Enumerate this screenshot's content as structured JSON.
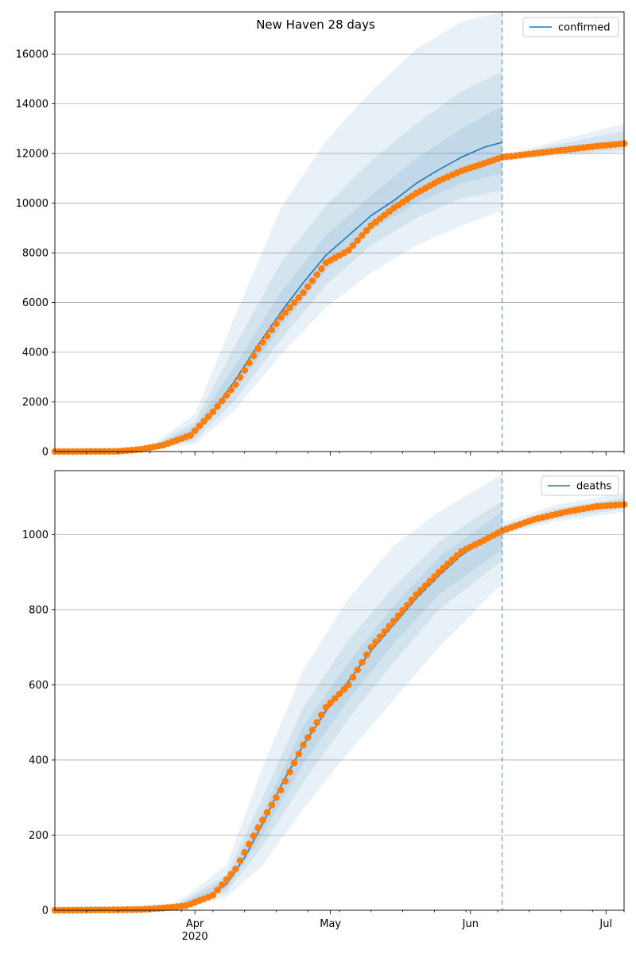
{
  "figure": {
    "title": "New Haven 28 days",
    "colors": {
      "line": "#1f77b4",
      "points": "#ff7f0e",
      "band": "#1f77b4",
      "grid": "#b0b0b0",
      "forecast_line": "#1f77b4"
    }
  },
  "chart_data": [
    {
      "type": "line",
      "name": "confirmed-panel",
      "legend": "confirmed",
      "legend_placement": "top-right",
      "grid_y": true,
      "x_range": [
        "2020-03-01",
        "2020-07-05"
      ],
      "ylim": [
        0,
        17700
      ],
      "yticks": [
        0,
        2000,
        4000,
        6000,
        8000,
        10000,
        12000,
        14000,
        16000
      ],
      "forecast_start": "2020-06-08",
      "model": [
        [
          "2020-03-01",
          0
        ],
        [
          "2020-03-15",
          20
        ],
        [
          "2020-03-22",
          120
        ],
        [
          "2020-03-27",
          420
        ],
        [
          "2020-04-01",
          800
        ],
        [
          "2020-04-05",
          1600
        ],
        [
          "2020-04-10",
          2900
        ],
        [
          "2020-04-15",
          4300
        ],
        [
          "2020-04-20",
          5600
        ],
        [
          "2020-04-25",
          6800
        ],
        [
          "2020-04-30",
          7900
        ],
        [
          "2020-05-05",
          8700
        ],
        [
          "2020-05-10",
          9500
        ],
        [
          "2020-05-15",
          10100
        ],
        [
          "2020-05-20",
          10800
        ],
        [
          "2020-05-25",
          11350
        ],
        [
          "2020-05-30",
          11850
        ],
        [
          "2020-06-04",
          12250
        ],
        [
          "2020-06-08",
          12450
        ]
      ],
      "bands": [
        [
          [
            "2020-03-01",
            0,
            0
          ],
          [
            "2020-03-22",
            60,
            200
          ],
          [
            "2020-04-01",
            300,
            1500
          ],
          [
            "2020-04-10",
            1700,
            5500
          ],
          [
            "2020-04-20",
            3900,
            9800
          ],
          [
            "2020-04-30",
            5800,
            12500
          ],
          [
            "2020-05-10",
            7200,
            14500
          ],
          [
            "2020-05-20",
            8300,
            16200
          ],
          [
            "2020-05-30",
            9100,
            17300
          ],
          [
            "2020-06-08",
            9700,
            17700
          ]
        ],
        [
          [
            "2020-03-01",
            0,
            0
          ],
          [
            "2020-03-22",
            80,
            170
          ],
          [
            "2020-04-01",
            450,
            1200
          ],
          [
            "2020-04-10",
            2100,
            4300
          ],
          [
            "2020-04-20",
            4500,
            7600
          ],
          [
            "2020-04-30",
            6700,
            9900
          ],
          [
            "2020-05-10",
            8300,
            11700
          ],
          [
            "2020-05-20",
            9400,
            13200
          ],
          [
            "2020-05-30",
            10200,
            14500
          ],
          [
            "2020-06-08",
            10500,
            15300
          ]
        ],
        [
          [
            "2020-03-01",
            0,
            0
          ],
          [
            "2020-03-22",
            95,
            150
          ],
          [
            "2020-04-01",
            600,
            1000
          ],
          [
            "2020-04-10",
            2500,
            3500
          ],
          [
            "2020-04-20",
            5000,
            6400
          ],
          [
            "2020-04-30",
            7300,
            8700
          ],
          [
            "2020-05-10",
            8900,
            10300
          ],
          [
            "2020-05-20",
            10000,
            11800
          ],
          [
            "2020-05-30",
            10800,
            13000
          ],
          [
            "2020-06-08",
            11200,
            13900
          ]
        ]
      ],
      "forecast_bands": [
        [
          [
            "2020-06-08",
            11700,
            11900
          ],
          [
            "2020-06-20",
            11900,
            12500
          ],
          [
            "2020-07-05",
            12050,
            13200
          ]
        ],
        [
          [
            "2020-06-08",
            11750,
            11880
          ],
          [
            "2020-06-20",
            11950,
            12350
          ],
          [
            "2020-07-05",
            12150,
            12900
          ]
        ]
      ],
      "forecast_model": [
        [
          "2020-06-08",
          11820
        ],
        [
          "2020-06-20",
          12100
        ],
        [
          "2020-07-05",
          12400
        ]
      ],
      "observed_anchors": [
        [
          "2020-03-01",
          0
        ],
        [
          "2020-03-15",
          10
        ],
        [
          "2020-03-20",
          90
        ],
        [
          "2020-03-25",
          260
        ],
        [
          "2020-03-31",
          650
        ],
        [
          "2020-04-05",
          1600
        ],
        [
          "2020-04-10",
          2700
        ],
        [
          "2020-04-15",
          4150
        ],
        [
          "2020-04-20",
          5400
        ],
        [
          "2020-04-25",
          6400
        ],
        [
          "2020-04-30",
          7600
        ],
        [
          "2020-05-05",
          8100
        ],
        [
          "2020-05-10",
          9100
        ],
        [
          "2020-05-15",
          9800
        ],
        [
          "2020-05-20",
          10400
        ],
        [
          "2020-05-25",
          10900
        ],
        [
          "2020-05-30",
          11300
        ],
        [
          "2020-06-04",
          11600
        ],
        [
          "2020-06-08",
          11850
        ],
        [
          "2020-06-15",
          12000
        ],
        [
          "2020-06-22",
          12150
        ],
        [
          "2020-06-29",
          12300
        ],
        [
          "2020-07-05",
          12400
        ]
      ]
    },
    {
      "type": "line",
      "name": "deaths-panel",
      "legend": "deaths",
      "legend_placement": "top-right",
      "grid_y": true,
      "x_range": [
        "2020-03-01",
        "2020-07-05"
      ],
      "ylim": [
        0,
        1170
      ],
      "yticks": [
        0,
        200,
        400,
        600,
        800,
        1000
      ],
      "forecast_start": "2020-06-08",
      "model": [
        [
          "2020-03-01",
          0
        ],
        [
          "2020-03-20",
          2
        ],
        [
          "2020-03-28",
          10
        ],
        [
          "2020-04-03",
          30
        ],
        [
          "2020-04-08",
          70
        ],
        [
          "2020-04-12",
          140
        ],
        [
          "2020-04-16",
          230
        ],
        [
          "2020-04-20",
          330
        ],
        [
          "2020-04-25",
          440
        ],
        [
          "2020-04-30",
          530
        ],
        [
          "2020-05-05",
          610
        ],
        [
          "2020-05-10",
          690
        ],
        [
          "2020-05-15",
          760
        ],
        [
          "2020-05-20",
          830
        ],
        [
          "2020-05-25",
          890
        ],
        [
          "2020-05-30",
          945
        ],
        [
          "2020-06-04",
          985
        ],
        [
          "2020-06-08",
          1010
        ]
      ],
      "bands": [
        [
          [
            "2020-03-01",
            0,
            0
          ],
          [
            "2020-03-28",
            4,
            20
          ],
          [
            "2020-04-08",
            35,
            120
          ],
          [
            "2020-04-16",
            120,
            380
          ],
          [
            "2020-04-25",
            270,
            640
          ],
          [
            "2020-05-05",
            420,
            830
          ],
          [
            "2020-05-15",
            560,
            970
          ],
          [
            "2020-05-25",
            700,
            1060
          ],
          [
            "2020-06-08",
            870,
            1160
          ]
        ],
        [
          [
            "2020-03-01",
            0,
            0
          ],
          [
            "2020-03-28",
            6,
            15
          ],
          [
            "2020-04-08",
            48,
            95
          ],
          [
            "2020-04-16",
            170,
            300
          ],
          [
            "2020-04-25",
            340,
            540
          ],
          [
            "2020-05-05",
            510,
            720
          ],
          [
            "2020-05-15",
            660,
            860
          ],
          [
            "2020-05-25",
            800,
            980
          ],
          [
            "2020-06-08",
            930,
            1090
          ]
        ],
        [
          [
            "2020-03-01",
            0,
            0
          ],
          [
            "2020-03-28",
            8,
            12
          ],
          [
            "2020-04-08",
            58,
            82
          ],
          [
            "2020-04-16",
            200,
            260
          ],
          [
            "2020-04-25",
            390,
            490
          ],
          [
            "2020-05-05",
            560,
            660
          ],
          [
            "2020-05-15",
            710,
            810
          ],
          [
            "2020-05-25",
            840,
            940
          ],
          [
            "2020-06-08",
            960,
            1060
          ]
        ]
      ],
      "forecast_bands": [
        [
          [
            "2020-06-08",
            1000,
            1030
          ],
          [
            "2020-06-20",
            1035,
            1080
          ],
          [
            "2020-07-05",
            1060,
            1110
          ]
        ],
        [
          [
            "2020-06-08",
            1005,
            1022
          ],
          [
            "2020-06-20",
            1042,
            1070
          ],
          [
            "2020-07-05",
            1068,
            1098
          ]
        ]
      ],
      "forecast_model": [
        [
          "2020-06-08",
          1010
        ],
        [
          "2020-06-20",
          1055
        ],
        [
          "2020-07-05",
          1082
        ]
      ],
      "observed_anchors": [
        [
          "2020-03-01",
          0
        ],
        [
          "2020-03-20",
          2
        ],
        [
          "2020-03-25",
          6
        ],
        [
          "2020-03-30",
          12
        ],
        [
          "2020-04-05",
          40
        ],
        [
          "2020-04-10",
          110
        ],
        [
          "2020-04-15",
          220
        ],
        [
          "2020-04-20",
          320
        ],
        [
          "2020-04-25",
          440
        ],
        [
          "2020-04-30",
          540
        ],
        [
          "2020-05-05",
          600
        ],
        [
          "2020-05-10",
          700
        ],
        [
          "2020-05-15",
          770
        ],
        [
          "2020-05-20",
          840
        ],
        [
          "2020-05-25",
          900
        ],
        [
          "2020-05-30",
          955
        ],
        [
          "2020-06-04",
          985
        ],
        [
          "2020-06-08",
          1010
        ],
        [
          "2020-06-15",
          1040
        ],
        [
          "2020-06-22",
          1060
        ],
        [
          "2020-06-29",
          1075
        ],
        [
          "2020-07-05",
          1080
        ]
      ]
    }
  ],
  "x_axis": {
    "major_ticks": [
      {
        "date": "2020-04-01",
        "label": "Apr",
        "sublabel": "2020"
      },
      {
        "date": "2020-05-01",
        "label": "May",
        "sublabel": ""
      },
      {
        "date": "2020-06-01",
        "label": "Jun",
        "sublabel": ""
      },
      {
        "date": "2020-07-01",
        "label": "Jul",
        "sublabel": ""
      }
    ],
    "minor_ticks": [
      "2020-03-08",
      "2020-03-15",
      "2020-03-22",
      "2020-03-29",
      "2020-04-05",
      "2020-04-12",
      "2020-04-19",
      "2020-04-26",
      "2020-05-03",
      "2020-05-10",
      "2020-05-17",
      "2020-05-24",
      "2020-05-31",
      "2020-06-07",
      "2020-06-14",
      "2020-06-21",
      "2020-06-28",
      "2020-07-05"
    ]
  }
}
